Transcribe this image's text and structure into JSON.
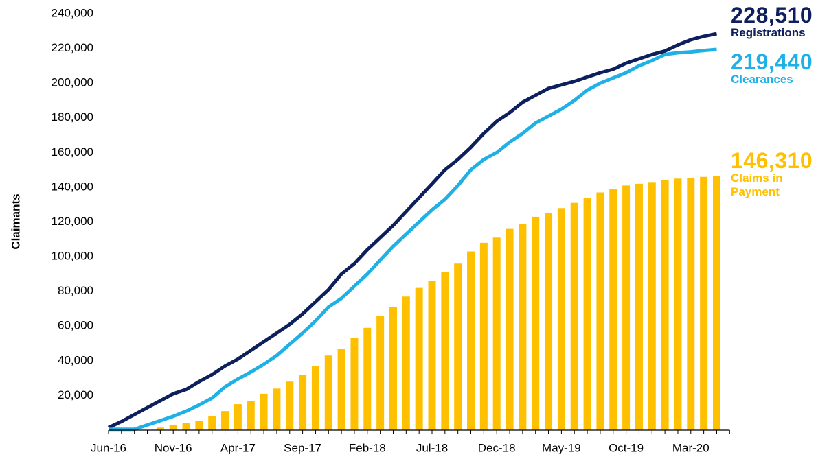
{
  "chart_data": {
    "type": "combo",
    "y_label": "Claimants",
    "categories": [
      "Jun-16",
      null,
      null,
      null,
      null,
      "Nov-16",
      null,
      null,
      null,
      null,
      "Apr-17",
      null,
      null,
      null,
      null,
      "Sep-17",
      null,
      null,
      null,
      null,
      "Feb-18",
      null,
      null,
      null,
      null,
      "Jul-18",
      null,
      null,
      null,
      null,
      "Dec-18",
      null,
      null,
      null,
      null,
      "May-19",
      null,
      null,
      null,
      null,
      "Oct-19",
      null,
      null,
      null,
      null,
      "Mar-20",
      null,
      null
    ],
    "ylim": [
      0,
      240000
    ],
    "yticks": [
      {
        "value": 20000,
        "label": "20,000"
      },
      {
        "value": 40000,
        "label": "40,000"
      },
      {
        "value": 60000,
        "label": "60,000"
      },
      {
        "value": 80000,
        "label": "80,000"
      },
      {
        "value": 100000,
        "label": "100,000"
      },
      {
        "value": 120000,
        "label": "120,000"
      },
      {
        "value": 140000,
        "label": "140,000"
      },
      {
        "value": 160000,
        "label": "160,000"
      },
      {
        "value": 180000,
        "label": "180,000"
      },
      {
        "value": 200000,
        "label": "200,000"
      },
      {
        "value": 220000,
        "label": "220,000"
      },
      {
        "value": 240000,
        "label": "240,000"
      }
    ],
    "series": [
      {
        "name": "Registrations",
        "type": "line",
        "color": "#0d1f5c",
        "end_label": "228,510",
        "values": [
          1500,
          5000,
          9000,
          13000,
          17000,
          21000,
          23500,
          28000,
          32000,
          37000,
          41000,
          46000,
          51000,
          56000,
          61000,
          67000,
          74000,
          81000,
          90000,
          96000,
          104000,
          111000,
          118000,
          126000,
          134000,
          142000,
          150000,
          156000,
          163000,
          171000,
          178000,
          183000,
          189000,
          193000,
          197000,
          199000,
          201000,
          203500,
          206000,
          208000,
          211500,
          214000,
          216500,
          218500,
          222000,
          225000,
          227000,
          228510
        ]
      },
      {
        "name": "Clearances",
        "type": "line",
        "color": "#1fb1e6",
        "end_label": "219,440",
        "values": [
          500,
          500,
          500,
          3000,
          5500,
          8000,
          11000,
          14500,
          18500,
          25000,
          29500,
          33500,
          38000,
          43000,
          49500,
          56000,
          63000,
          71000,
          76000,
          83000,
          90000,
          98000,
          106000,
          113000,
          120000,
          127000,
          133000,
          141000,
          150000,
          156000,
          160000,
          166000,
          171000,
          177000,
          181000,
          185000,
          190000,
          196000,
          200000,
          203000,
          206000,
          210000,
          213000,
          216500,
          217500,
          218000,
          218800,
          219440
        ]
      },
      {
        "name": "Claims in Payment",
        "type": "bar",
        "color": "#ffc000",
        "end_label": "146,310",
        "values": [
          null,
          null,
          null,
          null,
          1500,
          3000,
          4000,
          5500,
          8000,
          11000,
          15000,
          17000,
          21000,
          24000,
          28000,
          32000,
          37000,
          43000,
          47000,
          53000,
          59000,
          66000,
          71000,
          77000,
          82000,
          86000,
          91000,
          96000,
          103000,
          108000,
          111000,
          116000,
          119000,
          123000,
          125000,
          128000,
          131000,
          134000,
          137000,
          139000,
          141000,
          142000,
          143000,
          144000,
          145000,
          145500,
          146000,
          146310
        ]
      }
    ]
  }
}
